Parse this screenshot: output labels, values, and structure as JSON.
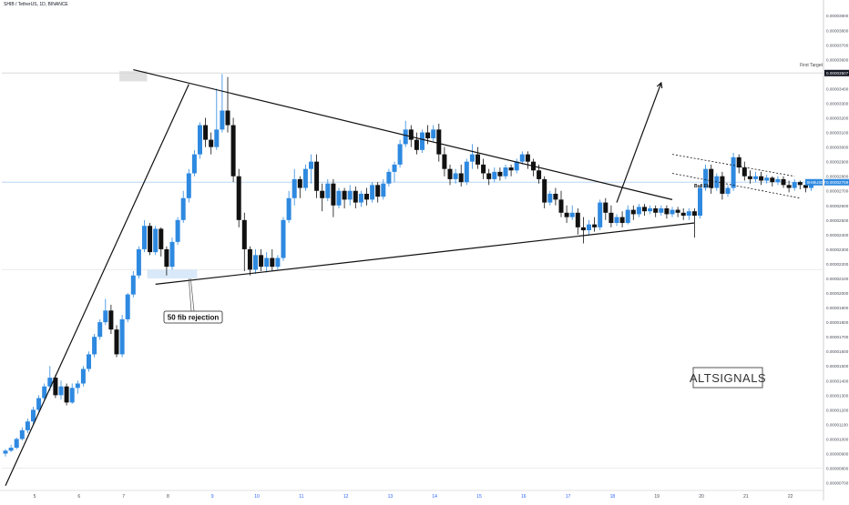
{
  "header": {
    "symbol_line": "SHIB / TetherUS, 1D, BINANCE"
  },
  "colors": {
    "up": "#2e89e0",
    "down": "#111111",
    "background": "#ffffff",
    "axis_text": "#4a4e5a",
    "grid": "#e6e6e6",
    "price_tag": "#2e89e0",
    "target_tag": "#131722",
    "zone": "#cfe3f7"
  },
  "annotations": {
    "first_target_label": "First Target",
    "first_target_price": "0.00003507",
    "current_symbol_tag": "SHIBUSDT",
    "current_price_tag": "0.00002759",
    "fib_label": "50 fib rejection",
    "bull_flag_label": "Bull Flag",
    "watermark": "ALTSIGNALS"
  },
  "chart_data": {
    "type": "candlestick",
    "title": "SHIB / TetherUS, 1D, BINANCE",
    "xlabel": "",
    "ylabel": "",
    "x_ticks": [
      "5",
      "6",
      "7",
      "8",
      "9",
      "10",
      "11",
      "12",
      "13",
      "14",
      "15",
      "16",
      "17",
      "18",
      "19",
      "20",
      "21",
      "22"
    ],
    "y_ticks": [
      "0.00003900",
      "0.00003800",
      "0.00003700",
      "0.00003600",
      "0.00003500",
      "0.00003400",
      "0.00003300",
      "0.00003200",
      "0.00003100",
      "0.00003000",
      "0.00002900",
      "0.00002800",
      "0.00002700",
      "0.00002600",
      "0.00002500",
      "0.00002400",
      "0.00002300",
      "0.00002200",
      "0.00002100",
      "0.00002000",
      "0.00001900",
      "0.00001800",
      "0.00001700",
      "0.00001600",
      "0.00001500",
      "0.00001400",
      "0.00001300",
      "0.00001200",
      "0.00001100",
      "0.00001000",
      "0.00000900",
      "0.00000800",
      "0.00000700"
    ],
    "ylim": [
      6.6e-06,
      3.97e-05
    ],
    "last_price": 2.759e-05,
    "target_price": 3.507e-05,
    "fib_zone": [
      2.1e-05,
      2.16e-05
    ],
    "candles_per_day": 6,
    "first_day_label_index": 5,
    "candles": [
      [
        9e-06,
        9.2e-06,
        8.8e-06,
        9.3e-06
      ],
      [
        9.2e-06,
        9.4e-06,
        9.1e-06,
        9.6e-06
      ],
      [
        9.4e-06,
        1e-05,
        9.3e-06,
        1.01e-05
      ],
      [
        1e-05,
        1.06e-05,
        9.9e-06,
        1.08e-05
      ],
      [
        1.06e-05,
        1.12e-05,
        1.04e-05,
        1.14e-05
      ],
      [
        1.12e-05,
        1.2e-05,
        1.1e-05,
        1.22e-05
      ],
      [
        1.2e-05,
        1.28e-05,
        1.18e-05,
        1.3e-05
      ],
      [
        1.28e-05,
        1.36e-05,
        1.26e-05,
        1.38e-05
      ],
      [
        1.36e-05,
        1.42e-05,
        1.33e-05,
        1.5e-05
      ],
      [
        1.42e-05,
        1.3e-05,
        1.28e-05,
        1.44e-05
      ],
      [
        1.3e-05,
        1.36e-05,
        1.27e-05,
        1.4e-05
      ],
      [
        1.36e-05,
        1.25e-05,
        1.23e-05,
        1.38e-05
      ],
      [
        1.25e-05,
        1.35e-05,
        1.24e-05,
        1.38e-05
      ],
      [
        1.35e-05,
        1.38e-05,
        1.31e-05,
        1.4e-05
      ],
      [
        1.38e-05,
        1.48e-05,
        1.36e-05,
        1.5e-05
      ],
      [
        1.48e-05,
        1.58e-05,
        1.46e-05,
        1.6e-05
      ],
      [
        1.58e-05,
        1.7e-05,
        1.56e-05,
        1.72e-05
      ],
      [
        1.7e-05,
        1.8e-05,
        1.68e-05,
        1.82e-05
      ],
      [
        1.8e-05,
        1.88e-05,
        1.78e-05,
        1.96e-05
      ],
      [
        1.88e-05,
        1.75e-05,
        1.72e-05,
        1.92e-05
      ],
      [
        1.75e-05,
        1.58e-05,
        1.56e-05,
        1.78e-05
      ],
      [
        1.58e-05,
        1.82e-05,
        1.56e-05,
        1.85e-05
      ],
      [
        1.82e-05,
        1.99e-05,
        1.8e-05,
        2e-05
      ],
      [
        1.99e-05,
        2.12e-05,
        1.97e-05,
        2.15e-05
      ],
      [
        2.12e-05,
        2.3e-05,
        2.1e-05,
        2.32e-05
      ],
      [
        2.3e-05,
        2.46e-05,
        2.28e-05,
        2.5e-05
      ],
      [
        2.46e-05,
        2.28e-05,
        2.26e-05,
        2.48e-05
      ],
      [
        2.28e-05,
        2.44e-05,
        2.26e-05,
        2.46e-05
      ],
      [
        2.44e-05,
        2.3e-05,
        2.25e-05,
        2.45e-05
      ],
      [
        2.3e-05,
        2.18e-05,
        2.12e-05,
        2.32e-05
      ],
      [
        2.18e-05,
        2.35e-05,
        2.16e-05,
        2.38e-05
      ],
      [
        2.35e-05,
        2.5e-05,
        2.33e-05,
        2.52e-05
      ],
      [
        2.5e-05,
        2.65e-05,
        2.48e-05,
        2.7e-05
      ],
      [
        2.65e-05,
        2.82e-05,
        2.62e-05,
        2.85e-05
      ],
      [
        2.82e-05,
        2.95e-05,
        2.8e-05,
        2.98e-05
      ],
      [
        2.95e-05,
        3.15e-05,
        2.92e-05,
        3.17e-05
      ],
      [
        3.15e-05,
        3.05e-05,
        3e-05,
        3.2e-05
      ],
      [
        3.05e-05,
        3e-05,
        2.95e-05,
        3.1e-05
      ],
      [
        3e-05,
        3.12e-05,
        2.98e-05,
        3.4e-05
      ],
      [
        3.12e-05,
        3.25e-05,
        3.1e-05,
        3.5e-05
      ],
      [
        3.25e-05,
        3.15e-05,
        3.1e-05,
        3.48e-05
      ],
      [
        3.15e-05,
        2.8e-05,
        2.76e-05,
        3.2e-05
      ],
      [
        2.8e-05,
        2.5e-05,
        2.45e-05,
        2.85e-05
      ],
      [
        2.5e-05,
        2.3e-05,
        2.15e-05,
        2.55e-05
      ],
      [
        2.3e-05,
        2.16e-05,
        2.12e-05,
        2.32e-05
      ],
      [
        2.16e-05,
        2.26e-05,
        2.13e-05,
        2.3e-05
      ],
      [
        2.26e-05,
        2.18e-05,
        2.15e-05,
        2.3e-05
      ],
      [
        2.18e-05,
        2.24e-05,
        2.14e-05,
        2.28e-05
      ],
      [
        2.24e-05,
        2.18e-05,
        2.15e-05,
        2.3e-05
      ],
      [
        2.18e-05,
        2.24e-05,
        2.16e-05,
        2.26e-05
      ],
      [
        2.24e-05,
        2.5e-05,
        2.22e-05,
        2.52e-05
      ],
      [
        2.5e-05,
        2.65e-05,
        2.48e-05,
        2.7e-05
      ],
      [
        2.65e-05,
        2.78e-05,
        2.6e-05,
        2.85e-05
      ],
      [
        2.78e-05,
        2.72e-05,
        2.65e-05,
        2.8e-05
      ],
      [
        2.72e-05,
        2.85e-05,
        2.7e-05,
        2.88e-05
      ],
      [
        2.85e-05,
        2.9e-05,
        2.75e-05,
        2.95e-05
      ],
      [
        2.9e-05,
        2.7e-05,
        2.65e-05,
        2.95e-05
      ],
      [
        2.7e-05,
        2.65e-05,
        2.56e-05,
        2.75e-05
      ],
      [
        2.65e-05,
        2.75e-05,
        2.63e-05,
        2.78e-05
      ],
      [
        2.75e-05,
        2.6e-05,
        2.52e-05,
        2.78e-05
      ],
      [
        2.6e-05,
        2.7e-05,
        2.58e-05,
        2.72e-05
      ],
      [
        2.7e-05,
        2.64e-05,
        2.58e-05,
        2.72e-05
      ],
      [
        2.64e-05,
        2.7e-05,
        2.6e-05,
        2.74e-05
      ],
      [
        2.7e-05,
        2.62e-05,
        2.58e-05,
        2.73e-05
      ],
      [
        2.62e-05,
        2.68e-05,
        2.59e-05,
        2.7e-05
      ],
      [
        2.68e-05,
        2.64e-05,
        2.6e-05,
        2.72e-05
      ],
      [
        2.64e-05,
        2.74e-05,
        2.62e-05,
        2.76e-05
      ],
      [
        2.74e-05,
        2.66e-05,
        2.62e-05,
        2.76e-05
      ],
      [
        2.66e-05,
        2.75e-05,
        2.64e-05,
        2.78e-05
      ],
      [
        2.75e-05,
        2.83e-05,
        2.73e-05,
        2.85e-05
      ],
      [
        2.83e-05,
        2.88e-05,
        2.76e-05,
        2.9e-05
      ],
      [
        2.88e-05,
        3.02e-05,
        2.86e-05,
        3.05e-05
      ],
      [
        3.02e-05,
        3.12e-05,
        3e-05,
        3.18e-05
      ],
      [
        3.12e-05,
        3.05e-05,
        3e-05,
        3.15e-05
      ],
      [
        3.05e-05,
        2.98e-05,
        2.95e-05,
        3.1e-05
      ],
      [
        2.98e-05,
        3.1e-05,
        2.96e-05,
        3.12e-05
      ],
      [
        3.1e-05,
        3.06e-05,
        3.02e-05,
        3.15e-05
      ],
      [
        3.06e-05,
        3.12e-05,
        3.04e-05,
        3.15e-05
      ],
      [
        3.12e-05,
        2.95e-05,
        2.9e-05,
        3.16e-05
      ],
      [
        2.95e-05,
        2.85e-05,
        2.8e-05,
        3e-05
      ],
      [
        2.85e-05,
        2.78e-05,
        2.74e-05,
        2.88e-05
      ],
      [
        2.78e-05,
        2.82e-05,
        2.75e-05,
        2.85e-05
      ],
      [
        2.82e-05,
        2.76e-05,
        2.73e-05,
        2.88e-05
      ],
      [
        2.76e-05,
        2.9e-05,
        2.74e-05,
        2.92e-05
      ],
      [
        2.9e-05,
        2.95e-05,
        2.85e-05,
        3.02e-05
      ],
      [
        2.95e-05,
        2.88e-05,
        2.85e-05,
        3e-05
      ],
      [
        2.88e-05,
        2.82e-05,
        2.78e-05,
        2.92e-05
      ],
      [
        2.82e-05,
        2.78e-05,
        2.74e-05,
        2.85e-05
      ],
      [
        2.78e-05,
        2.83e-05,
        2.76e-05,
        2.86e-05
      ],
      [
        2.83e-05,
        2.8e-05,
        2.77e-05,
        2.86e-05
      ],
      [
        2.8e-05,
        2.86e-05,
        2.78e-05,
        2.88e-05
      ],
      [
        2.86e-05,
        2.84e-05,
        2.8e-05,
        2.88e-05
      ],
      [
        2.84e-05,
        2.9e-05,
        2.82e-05,
        2.92e-05
      ],
      [
        2.9e-05,
        2.95e-05,
        2.88e-05,
        2.97e-05
      ],
      [
        2.95e-05,
        2.9e-05,
        2.85e-05,
        2.97e-05
      ],
      [
        2.9e-05,
        2.84e-05,
        2.8e-05,
        2.92e-05
      ],
      [
        2.84e-05,
        2.78e-05,
        2.75e-05,
        2.88e-05
      ],
      [
        2.78e-05,
        2.62e-05,
        2.58e-05,
        2.8e-05
      ],
      [
        2.62e-05,
        2.68e-05,
        2.6e-05,
        2.7e-05
      ],
      [
        2.68e-05,
        2.64e-05,
        2.6e-05,
        2.72e-05
      ],
      [
        2.64e-05,
        2.55e-05,
        2.52e-05,
        2.7e-05
      ],
      [
        2.55e-05,
        2.52e-05,
        2.48e-05,
        2.6e-05
      ],
      [
        2.52e-05,
        2.55e-05,
        2.5e-05,
        2.6e-05
      ],
      [
        2.55e-05,
        2.45e-05,
        2.4e-05,
        2.58e-05
      ],
      [
        2.45e-05,
        2.43e-05,
        2.34e-05,
        2.52e-05
      ],
      [
        2.43e-05,
        2.47e-05,
        2.4e-05,
        2.5e-05
      ],
      [
        2.47e-05,
        2.45e-05,
        2.42e-05,
        2.52e-05
      ],
      [
        2.45e-05,
        2.62e-05,
        2.43e-05,
        2.64e-05
      ],
      [
        2.62e-05,
        2.55e-05,
        2.5e-05,
        2.65e-05
      ],
      [
        2.55e-05,
        2.48e-05,
        2.45e-05,
        2.6e-05
      ],
      [
        2.48e-05,
        2.52e-05,
        2.46e-05,
        2.54e-05
      ],
      [
        2.52e-05,
        2.48e-05,
        2.45e-05,
        2.56e-05
      ],
      [
        2.48e-05,
        2.57e-05,
        2.47e-05,
        2.6e-05
      ],
      [
        2.57e-05,
        2.54e-05,
        2.5e-05,
        2.6e-05
      ],
      [
        2.54e-05,
        2.59e-05,
        2.52e-05,
        2.61e-05
      ],
      [
        2.59e-05,
        2.56e-05,
        2.53e-05,
        2.61e-05
      ],
      [
        2.56e-05,
        2.58e-05,
        2.54e-05,
        2.6e-05
      ],
      [
        2.58e-05,
        2.55e-05,
        2.52e-05,
        2.6e-05
      ],
      [
        2.55e-05,
        2.58e-05,
        2.53e-05,
        2.6e-05
      ],
      [
        2.58e-05,
        2.54e-05,
        2.51e-05,
        2.6e-05
      ],
      [
        2.54e-05,
        2.57e-05,
        2.52e-05,
        2.59e-05
      ],
      [
        2.57e-05,
        2.55e-05,
        2.52e-05,
        2.59e-05
      ],
      [
        2.55e-05,
        2.53e-05,
        2.5e-05,
        2.58e-05
      ],
      [
        2.53e-05,
        2.56e-05,
        2.5e-05,
        2.58e-05
      ],
      [
        2.56e-05,
        2.53e-05,
        2.38e-05,
        2.58e-05
      ],
      [
        2.53e-05,
        2.72e-05,
        2.51e-05,
        2.74e-05
      ],
      [
        2.72e-05,
        2.85e-05,
        2.7e-05,
        2.88e-05
      ],
      [
        2.85e-05,
        2.72e-05,
        2.68e-05,
        2.88e-05
      ],
      [
        2.72e-05,
        2.8e-05,
        2.7e-05,
        2.82e-05
      ],
      [
        2.8e-05,
        2.68e-05,
        2.64e-05,
        2.83e-05
      ],
      [
        2.68e-05,
        2.72e-05,
        2.66e-05,
        2.74e-05
      ],
      [
        2.72e-05,
        2.93e-05,
        2.7e-05,
        2.96e-05
      ],
      [
        2.93e-05,
        2.86e-05,
        2.82e-05,
        2.95e-05
      ],
      [
        2.86e-05,
        2.8e-05,
        2.77e-05,
        2.9e-05
      ],
      [
        2.8e-05,
        2.78e-05,
        2.75e-05,
        2.84e-05
      ],
      [
        2.78e-05,
        2.8e-05,
        2.76e-05,
        2.83e-05
      ],
      [
        2.8e-05,
        2.77e-05,
        2.74e-05,
        2.83e-05
      ],
      [
        2.77e-05,
        2.79e-05,
        2.75e-05,
        2.81e-05
      ],
      [
        2.79e-05,
        2.76e-05,
        2.73e-05,
        2.8e-05
      ],
      [
        2.76e-05,
        2.78e-05,
        2.74e-05,
        2.8e-05
      ],
      [
        2.78e-05,
        2.74e-05,
        2.72e-05,
        2.8e-05
      ],
      [
        2.74e-05,
        2.72e-05,
        2.69e-05,
        2.77e-05
      ],
      [
        2.72e-05,
        2.76e-05,
        2.7e-05,
        2.78e-05
      ],
      [
        2.76e-05,
        2.74e-05,
        2.71e-05,
        2.77e-05
      ],
      [
        2.74e-05,
        2.72e-05,
        2.69e-05,
        2.76e-05
      ],
      [
        2.72e-05,
        2.759e-05,
        2.7e-05,
        2.77e-05
      ]
    ],
    "drawings": {
      "rising_trendline": [
        [
          0,
          6.8e-06
        ],
        [
          33,
          3.43e-05
        ]
      ],
      "falling_trendline": [
        [
          23,
          3.53e-05
        ],
        [
          120,
          2.64e-05
        ]
      ],
      "support_trendline": [
        [
          27,
          2.06e-05
        ],
        [
          124,
          2.48e-05
        ]
      ],
      "target_arrow": [
        [
          110,
          2.62e-05
        ],
        [
          118,
          3.44e-05
        ]
      ],
      "bull_flag_upper": [
        [
          120,
          2.95e-05
        ],
        [
          142,
          2.8e-05
        ]
      ],
      "bull_flag_lower": [
        [
          120,
          2.82e-05
        ],
        [
          143,
          2.65e-05
        ]
      ]
    },
    "legend": "none",
    "grid": false
  }
}
